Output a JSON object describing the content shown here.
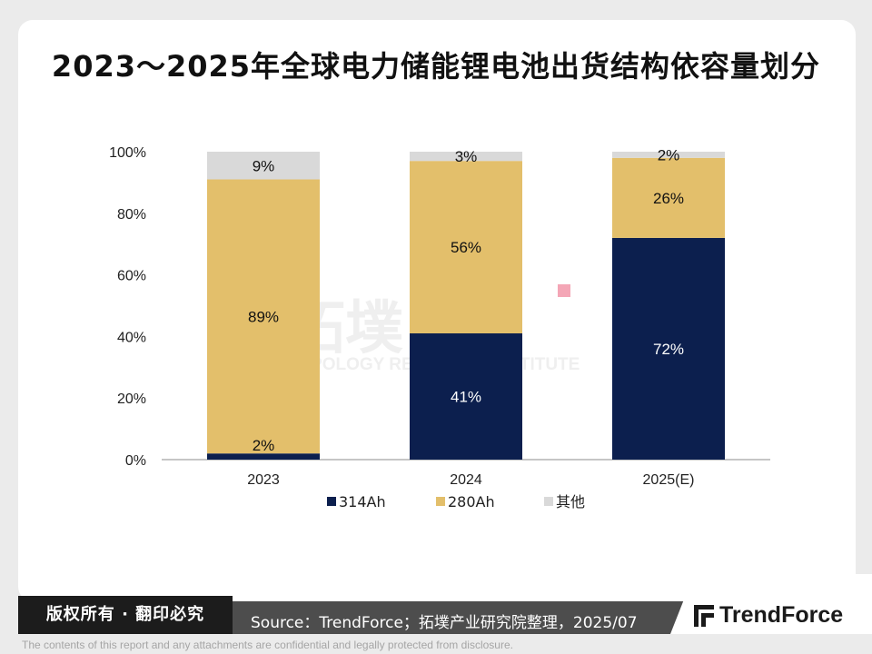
{
  "page_title": "2023～2025年全球电力储能锂电池出货结构依容量划分",
  "chart_data": {
    "type": "bar",
    "stacked": true,
    "categories": [
      "2023",
      "2024",
      "2025(E)"
    ],
    "series": [
      {
        "name": "314Ah",
        "color": "#0c1f4e",
        "values": [
          2,
          41,
          72
        ],
        "labels": [
          "2%",
          "41%",
          "72%"
        ],
        "label_color": "#111111"
      },
      {
        "name": "280Ah",
        "color": "#e3bf6b",
        "values": [
          89,
          56,
          26
        ],
        "labels": [
          "89%",
          "56%",
          "26%"
        ],
        "label_color": "#111111"
      },
      {
        "name": "其他",
        "color": "#d9d9d9",
        "values": [
          9,
          3,
          2
        ],
        "labels": [
          "9%",
          "3%",
          "2%"
        ],
        "label_color": "#111111"
      }
    ],
    "y_ticks": [
      "0%",
      "20%",
      "40%",
      "60%",
      "80%",
      "100%"
    ],
    "ylim": [
      0,
      100
    ],
    "grid": false,
    "legend_position": "bottom"
  },
  "watermark": {
    "name": "拓墣",
    "tagline": "TOPOLOGY RESEARCH INSTITUTE"
  },
  "footer": {
    "copyright": "版权所有 · 翻印必究",
    "source": "Source：TrendForce；拓墣产业研究院整理，2025/07",
    "brand": "TrendForce",
    "disclaimer": "The contents of this report and any attachments are confidential and legally protected from disclosure."
  }
}
